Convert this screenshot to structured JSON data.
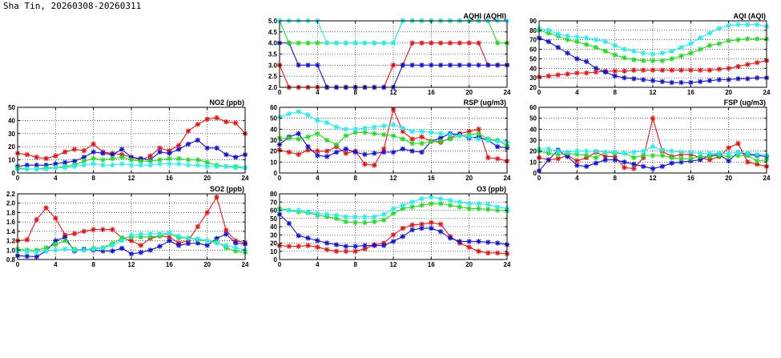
{
  "page_title": "Sha Tin, 20260308-20260311",
  "colors": {
    "red": "#ee1111",
    "green": "#22dd22",
    "blue": "#1111dd",
    "cyan": "#22eeee",
    "grid": "#000000"
  },
  "chart_data": [
    {
      "id": "no2",
      "type": "line",
      "title": "NO2 (ppb)",
      "xlim": [
        0,
        24
      ],
      "ylim": [
        0,
        50
      ],
      "xticks": [
        0,
        4,
        8,
        12,
        16,
        20,
        24
      ],
      "yticks": [
        0,
        10,
        20,
        30,
        40,
        50
      ],
      "grid": true,
      "x": [
        0,
        1,
        2,
        3,
        4,
        5,
        6,
        7,
        8,
        9,
        10,
        11,
        12,
        13,
        14,
        15,
        16,
        17,
        18,
        19,
        20,
        21,
        22,
        23,
        24
      ],
      "series": [
        {
          "color": "red",
          "values": [
            15,
            14,
            12,
            11,
            13,
            16,
            18,
            17,
            22,
            16,
            15,
            14,
            12,
            10,
            13,
            19,
            17,
            21,
            32,
            37,
            41,
            42,
            39,
            38,
            30
          ]
        },
        {
          "color": "blue",
          "values": [
            5,
            6,
            6,
            6,
            7,
            8,
            9,
            12,
            16,
            15,
            14,
            18,
            12,
            11,
            10,
            16,
            15,
            18,
            22,
            25,
            19,
            19,
            14,
            12,
            14
          ]
        },
        {
          "color": "green",
          "values": [
            4,
            3,
            3,
            4,
            4,
            5,
            6,
            9,
            11,
            10,
            11,
            12,
            10,
            9,
            9,
            10,
            11,
            11,
            10,
            10,
            8,
            6,
            5,
            5,
            4
          ]
        },
        {
          "color": "cyan",
          "values": [
            3,
            3,
            3,
            3,
            4,
            4,
            5,
            6,
            7,
            6,
            6,
            7,
            6,
            6,
            6,
            7,
            7,
            7,
            6,
            6,
            5,
            5,
            5,
            4,
            4
          ]
        }
      ]
    },
    {
      "id": "so2",
      "type": "line",
      "title": "SO2 (ppb)",
      "xlim": [
        0,
        24
      ],
      "ylim": [
        0.8,
        2.2
      ],
      "xticks": [
        0,
        4,
        8,
        12,
        16,
        20,
        24
      ],
      "yticks": [
        0.8,
        1.0,
        1.2,
        1.4,
        1.6,
        1.8,
        2.0,
        2.2
      ],
      "grid": true,
      "x": [
        0,
        1,
        2,
        3,
        4,
        5,
        6,
        7,
        8,
        9,
        10,
        11,
        12,
        13,
        14,
        15,
        16,
        17,
        18,
        19,
        20,
        21,
        22,
        23,
        24
      ],
      "series": [
        {
          "color": "red",
          "values": [
            1.2,
            1.22,
            1.65,
            1.9,
            1.68,
            1.32,
            1.35,
            1.4,
            1.44,
            1.44,
            1.44,
            1.26,
            1.2,
            1.1,
            1.25,
            1.3,
            1.28,
            1.15,
            1.2,
            1.5,
            1.8,
            2.13,
            1.42,
            1.2,
            1.16
          ]
        },
        {
          "color": "blue",
          "values": [
            0.88,
            0.87,
            0.86,
            0.98,
            1.2,
            1.27,
            0.98,
            1.02,
            1.0,
            0.98,
            0.98,
            1.04,
            0.92,
            0.95,
            1.0,
            1.08,
            1.2,
            1.1,
            1.14,
            1.15,
            1.1,
            1.25,
            1.34,
            1.15,
            1.13
          ]
        },
        {
          "color": "green",
          "values": [
            1.02,
            1.0,
            1.0,
            1.05,
            1.12,
            1.2,
            1.02,
            1.0,
            1.04,
            1.05,
            1.14,
            1.26,
            1.28,
            1.28,
            1.28,
            1.3,
            1.36,
            1.26,
            1.26,
            1.22,
            1.2,
            1.18,
            1.05,
            0.98,
            0.95
          ]
        },
        {
          "color": "cyan",
          "values": [
            0.98,
            0.97,
            0.96,
            0.98,
            1.0,
            1.02,
            1.0,
            1.0,
            1.02,
            1.04,
            1.1,
            1.2,
            1.32,
            1.34,
            1.35,
            1.35,
            1.36,
            1.3,
            1.25,
            1.24,
            1.2,
            1.15,
            1.1,
            1.05,
            1.0
          ]
        }
      ]
    },
    {
      "id": "aqhi",
      "type": "line",
      "title": "AQHI (AQHI)",
      "xlim": [
        0,
        24
      ],
      "ylim": [
        2.0,
        5.0
      ],
      "xticks": [
        0,
        4,
        8,
        12,
        16,
        20,
        24
      ],
      "yticks": [
        2.0,
        2.5,
        3.0,
        3.5,
        4.0,
        4.5,
        5.0
      ],
      "grid": true,
      "x": [
        0,
        1,
        2,
        3,
        4,
        5,
        6,
        7,
        8,
        9,
        10,
        11,
        12,
        13,
        14,
        15,
        16,
        17,
        18,
        19,
        20,
        21,
        22,
        23,
        24
      ],
      "series": [
        {
          "color": "red",
          "values": [
            3,
            2,
            2,
            2,
            2,
            2,
            2,
            2,
            2,
            2,
            2,
            2,
            3,
            3,
            4,
            4,
            4,
            4,
            4,
            4,
            4,
            4,
            3,
            3,
            3
          ]
        },
        {
          "color": "blue",
          "values": [
            4,
            4,
            3,
            3,
            3,
            2,
            2,
            2,
            2,
            2,
            2,
            2,
            2,
            3,
            3,
            3,
            3,
            3,
            3,
            3,
            3,
            3,
            3,
            3,
            3
          ]
        },
        {
          "color": "green",
          "values": [
            5,
            4,
            4,
            4,
            4,
            4,
            4,
            4,
            4,
            4,
            4,
            4,
            4,
            5,
            5,
            5,
            5,
            5,
            5,
            5,
            5,
            5,
            5,
            4,
            4
          ]
        },
        {
          "color": "cyan",
          "values": [
            5,
            5,
            5,
            5,
            5,
            4,
            4,
            4,
            4,
            4,
            4,
            4,
            4,
            5,
            5,
            5,
            5,
            5,
            5,
            5,
            5,
            5,
            5,
            5,
            5
          ]
        }
      ]
    },
    {
      "id": "rsp",
      "type": "line",
      "title": "RSP (ug/m3)",
      "xlim": [
        0,
        24
      ],
      "ylim": [
        0,
        60
      ],
      "xticks": [
        0,
        4,
        8,
        12,
        16,
        20,
        24
      ],
      "yticks": [
        0,
        10,
        20,
        30,
        40,
        50,
        60
      ],
      "grid": true,
      "x": [
        0,
        1,
        2,
        3,
        4,
        5,
        6,
        7,
        8,
        9,
        10,
        11,
        12,
        13,
        14,
        15,
        16,
        17,
        18,
        19,
        20,
        21,
        22,
        23,
        24
      ],
      "series": [
        {
          "color": "red",
          "values": [
            21,
            19,
            17,
            21,
            20,
            20,
            24,
            18,
            20,
            8,
            7,
            22,
            58,
            38,
            31,
            33,
            29,
            28,
            32,
            36,
            38,
            40,
            14,
            13,
            11
          ]
        },
        {
          "color": "blue",
          "values": [
            26,
            33,
            36,
            24,
            16,
            15,
            19,
            22,
            19,
            17,
            18,
            19,
            19,
            22,
            20,
            19,
            29,
            32,
            36,
            35,
            32,
            33,
            30,
            24,
            23
          ]
        },
        {
          "color": "green",
          "values": [
            32,
            32,
            31,
            33,
            36,
            30,
            26,
            34,
            37,
            37,
            36,
            35,
            34,
            31,
            27,
            27,
            29,
            29,
            31,
            34,
            35,
            36,
            31,
            30,
            25
          ]
        },
        {
          "color": "cyan",
          "values": [
            51,
            54,
            56,
            53,
            48,
            46,
            42,
            40,
            40,
            41,
            42,
            43,
            44,
            41,
            38,
            38,
            37,
            36,
            35,
            34,
            33,
            31,
            30,
            29,
            28
          ]
        }
      ]
    },
    {
      "id": "o3",
      "type": "line",
      "title": "O3 (ppb)",
      "xlim": [
        0,
        24
      ],
      "ylim": [
        0,
        80
      ],
      "xticks": [
        0,
        4,
        8,
        12,
        16,
        20,
        24
      ],
      "yticks": [
        0,
        10,
        20,
        30,
        40,
        50,
        60,
        70,
        80
      ],
      "grid": true,
      "x": [
        0,
        1,
        2,
        3,
        4,
        5,
        6,
        7,
        8,
        9,
        10,
        11,
        12,
        13,
        14,
        15,
        16,
        17,
        18,
        19,
        20,
        21,
        22,
        23,
        24
      ],
      "series": [
        {
          "color": "red",
          "values": [
            17,
            16,
            16,
            17,
            15,
            12,
            10,
            10,
            10,
            13,
            18,
            20,
            30,
            38,
            42,
            43,
            45,
            43,
            28,
            20,
            15,
            10,
            8,
            8,
            7
          ]
        },
        {
          "color": "blue",
          "values": [
            55,
            44,
            29,
            26,
            23,
            20,
            18,
            16,
            16,
            17,
            17,
            17,
            22,
            28,
            36,
            38,
            38,
            34,
            26,
            22,
            22,
            22,
            21,
            20,
            18
          ]
        },
        {
          "color": "green",
          "values": [
            62,
            60,
            58,
            57,
            54,
            52,
            50,
            46,
            45,
            45,
            46,
            48,
            56,
            62,
            64,
            66,
            68,
            68,
            66,
            64,
            62,
            62,
            61,
            60,
            59
          ]
        },
        {
          "color": "cyan",
          "values": [
            60,
            60,
            60,
            58,
            56,
            55,
            54,
            52,
            52,
            52,
            52,
            55,
            62,
            66,
            70,
            74,
            76,
            74,
            72,
            70,
            68,
            68,
            67,
            64,
            62
          ]
        }
      ]
    },
    {
      "id": "aqi",
      "type": "line",
      "title": "AQI (AQI)",
      "xlim": [
        0,
        24
      ],
      "ylim": [
        20,
        90
      ],
      "xticks": [
        0,
        4,
        8,
        12,
        16,
        20,
        24
      ],
      "yticks": [
        20,
        30,
        40,
        50,
        60,
        70,
        80,
        90
      ],
      "grid": true,
      "x": [
        0,
        1,
        2,
        3,
        4,
        5,
        6,
        7,
        8,
        9,
        10,
        11,
        12,
        13,
        14,
        15,
        16,
        17,
        18,
        19,
        20,
        21,
        22,
        23,
        24
      ],
      "series": [
        {
          "color": "red",
          "values": [
            31,
            32,
            33,
            34,
            35,
            35,
            36,
            37,
            37,
            37,
            38,
            38,
            38,
            38,
            38,
            38,
            38,
            38,
            38,
            39,
            40,
            42,
            44,
            46,
            48
          ]
        },
        {
          "color": "blue",
          "values": [
            72,
            68,
            62,
            56,
            50,
            47,
            40,
            36,
            32,
            30,
            29,
            28,
            27,
            26,
            25,
            25,
            25,
            26,
            27,
            28,
            28,
            29,
            29,
            30,
            30
          ]
        },
        {
          "color": "green",
          "values": [
            80,
            77,
            74,
            70,
            68,
            65,
            62,
            58,
            54,
            51,
            49,
            48,
            48,
            48,
            50,
            53,
            56,
            60,
            64,
            66,
            69,
            70,
            71,
            71,
            71
          ]
        },
        {
          "color": "cyan",
          "values": [
            82,
            80,
            76,
            74,
            73,
            72,
            70,
            68,
            64,
            60,
            58,
            56,
            55,
            56,
            58,
            62,
            66,
            72,
            77,
            82,
            85,
            86,
            86,
            86,
            84
          ]
        }
      ]
    },
    {
      "id": "fsp",
      "type": "line",
      "title": "FSP (ug/m3)",
      "xlim": [
        0,
        24
      ],
      "ylim": [
        0,
        60
      ],
      "xticks": [
        0,
        4,
        8,
        12,
        16,
        20,
        24
      ],
      "yticks": [
        0,
        10,
        20,
        30,
        40,
        50,
        60
      ],
      "grid": true,
      "x": [
        0,
        1,
        2,
        3,
        4,
        5,
        6,
        7,
        8,
        9,
        10,
        11,
        12,
        13,
        14,
        15,
        16,
        17,
        18,
        19,
        20,
        21,
        22,
        23,
        24
      ],
      "series": [
        {
          "color": "red",
          "values": [
            14,
            12,
            13,
            16,
            11,
            14,
            19,
            15,
            15,
            5,
            4,
            14,
            50,
            20,
            15,
            17,
            17,
            14,
            12,
            15,
            23,
            27,
            10,
            8,
            6
          ]
        },
        {
          "color": "blue",
          "values": [
            2,
            12,
            21,
            15,
            7,
            6,
            9,
            12,
            12,
            10,
            8,
            6,
            4,
            6,
            9,
            10,
            11,
            12,
            16,
            17,
            11,
            19,
            17,
            16,
            15
          ]
        },
        {
          "color": "green",
          "values": [
            20,
            18,
            17,
            18,
            17,
            16,
            14,
            19,
            18,
            18,
            14,
            16,
            16,
            16,
            14,
            13,
            13,
            15,
            15,
            16,
            15,
            16,
            16,
            11,
            12
          ]
        },
        {
          "color": "cyan",
          "values": [
            22,
            22,
            20,
            19,
            20,
            20,
            20,
            19,
            19,
            18,
            19,
            20,
            24,
            21,
            20,
            19,
            19,
            18,
            18,
            18,
            18,
            19,
            18,
            17,
            16
          ]
        }
      ]
    }
  ]
}
